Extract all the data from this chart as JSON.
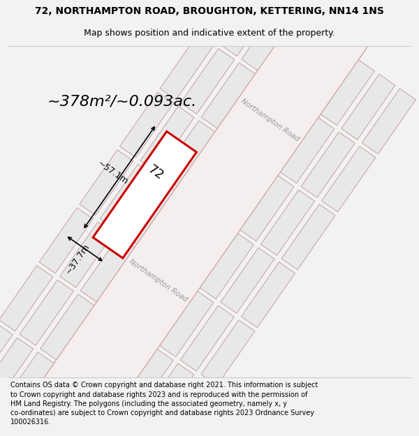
{
  "title_line1": "72, NORTHAMPTON ROAD, BROUGHTON, KETTERING, NN14 1NS",
  "title_line2": "Map shows position and indicative extent of the property.",
  "footer_text": "Contains OS data © Crown copyright and database right 2021. This information is subject to Crown copyright and database rights 2023 and is reproduced with the permission of HM Land Registry. The polygons (including the associated geometry, namely x, y co-ordinates) are subject to Crown copyright and database rights 2023 Ordnance Survey 100026316.",
  "area_text": "~378m²/~0.093ac.",
  "dim_width": "~57.1m",
  "dim_height": "~37.7m",
  "property_label": "72",
  "bg_color": "#f2f2f2",
  "map_bg": "#ffffff",
  "bld_fill": "#e8e8e8",
  "bld_edge": "#c8a0a0",
  "hi_fill": "#ffffff",
  "hi_edge": "#cc0000",
  "road_label": "Northampton Road",
  "title_fontsize": 10,
  "subtitle_fontsize": 9,
  "footer_fontsize": 7
}
